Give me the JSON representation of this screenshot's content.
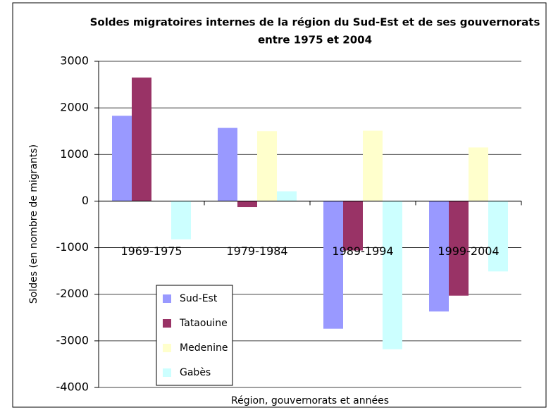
{
  "chart_data": {
    "type": "bar",
    "title": [
      "Soldes migratoires internes de la région du Sud-Est et de ses gouvernorats",
      "entre 1975 et 2004"
    ],
    "x_label": "Région, gouvernorats et années",
    "y_label": "Soldes (en nombre de migrants)",
    "categories": [
      "1969-1975",
      "1979-1984",
      "1989-1994",
      "1999-2004"
    ],
    "series": [
      {
        "name": "Sud-Est",
        "color": "#9999ff",
        "values": [
          1830,
          1570,
          -2740,
          -2370
        ]
      },
      {
        "name": "Tataouine",
        "color": "#993366",
        "values": [
          2650,
          -130,
          -1060,
          -2030
        ]
      },
      {
        "name": "Medenine",
        "color": "#ffffcc",
        "values": [
          0,
          1500,
          1510,
          1150
        ]
      },
      {
        "name": "Gabès",
        "color": "#ccffff",
        "values": [
          -820,
          210,
          -3180,
          -1510
        ]
      }
    ],
    "ylim": [
      -4000,
      3000
    ],
    "yticks": [
      -4000,
      -3000,
      -2000,
      -1000,
      0,
      1000,
      2000,
      3000
    ],
    "grid": true,
    "legend": "lower left"
  }
}
